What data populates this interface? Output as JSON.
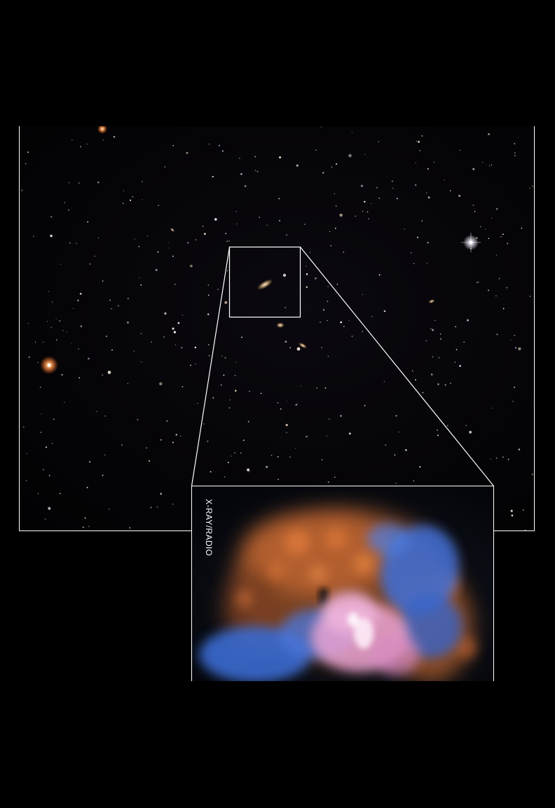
{
  "inset": {
    "label": "X-RAY/RADIO"
  },
  "colors": {
    "background": "#000000",
    "frame": "#ffffff",
    "xray": "#e07a3c",
    "radio": "#3d6fd8",
    "overlap": "#f0a9d8"
  }
}
